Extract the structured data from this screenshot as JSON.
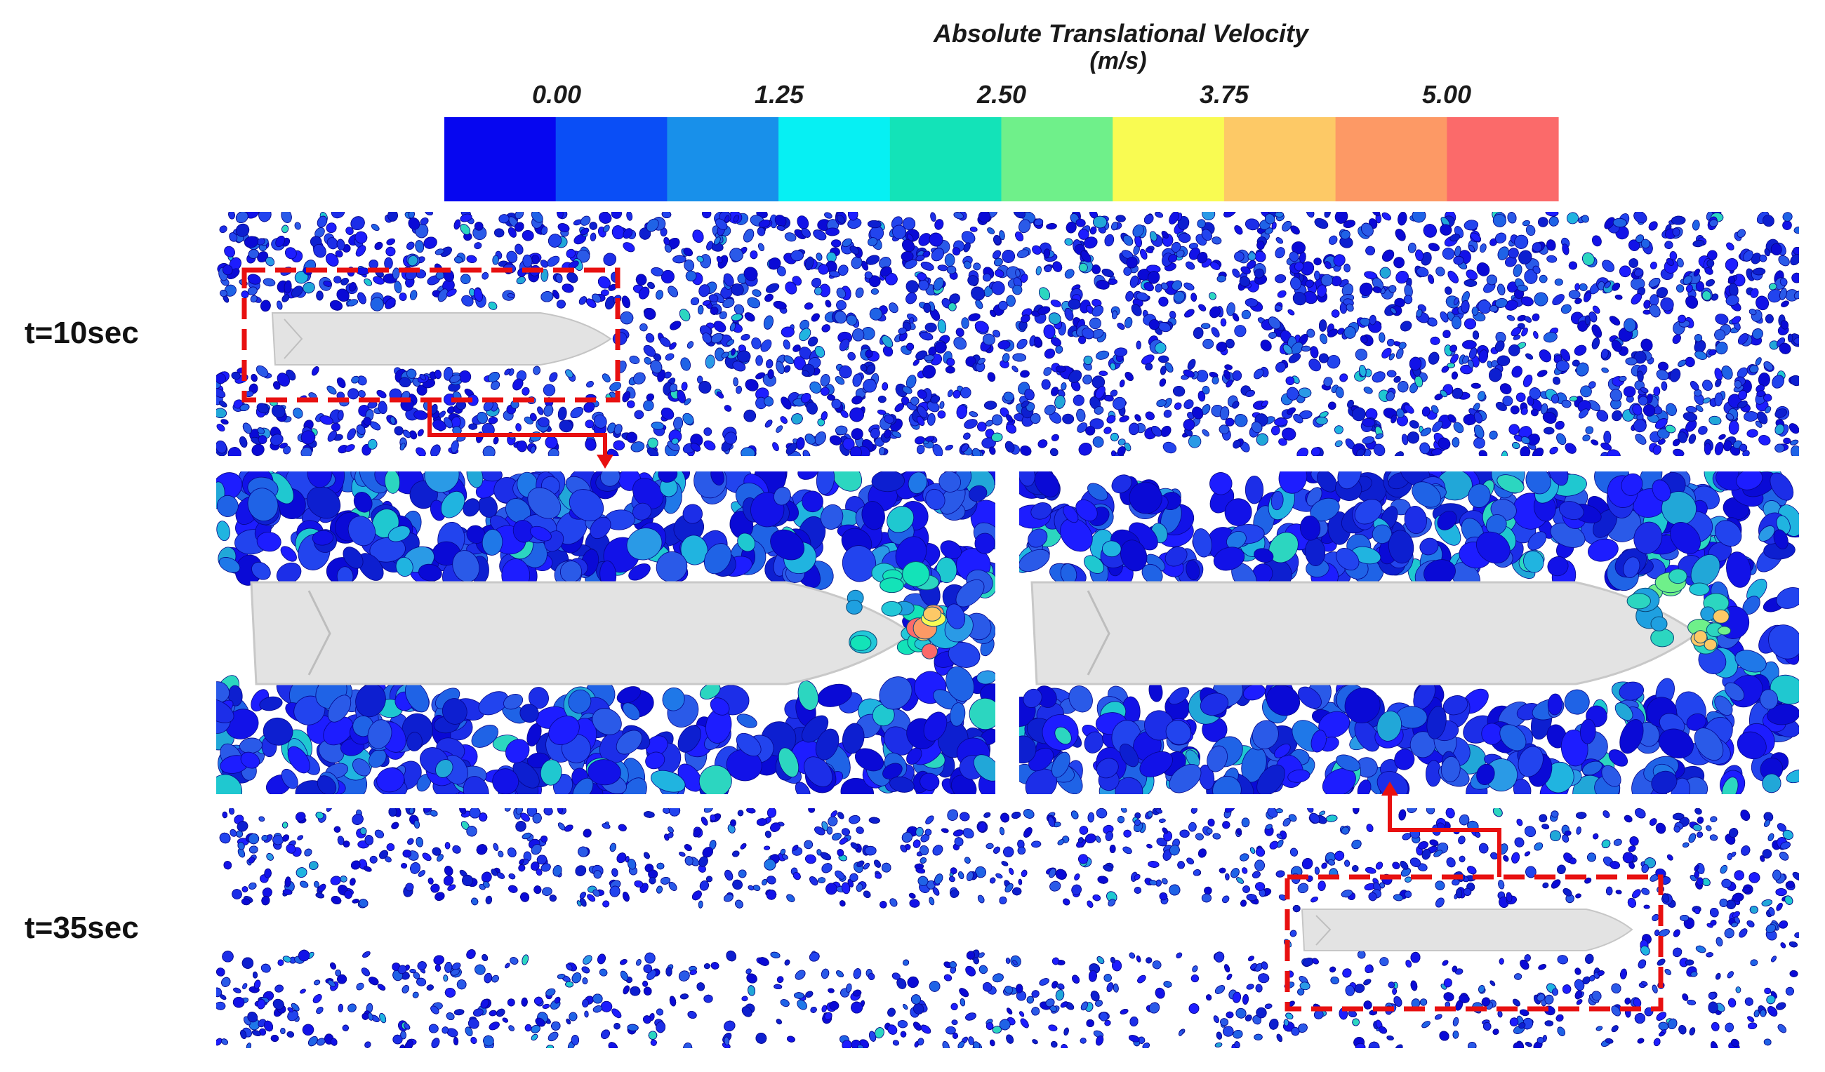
{
  "colorbar": {
    "title": "Absolute Translational Velocity",
    "unit": "(m/s)",
    "ticks": [
      "0.00",
      "1.25",
      "2.50",
      "3.75",
      "5.00"
    ],
    "colors": [
      "#0606f0",
      "#0a4ef6",
      "#1890ea",
      "#06f0f3",
      "#13e3b8",
      "#6ff08a",
      "#f9fb52",
      "#fdc966",
      "#fd9965",
      "#fb6a6a"
    ]
  },
  "time_labels": [
    "t=10sec",
    "t=35sec"
  ],
  "colors": {
    "particle_main": "#1515e6",
    "particle_mid": "#1f78e8",
    "particle_fast": "#22c8d8",
    "hull": "#e3e3e3",
    "highlight_box": "#e81010"
  }
}
